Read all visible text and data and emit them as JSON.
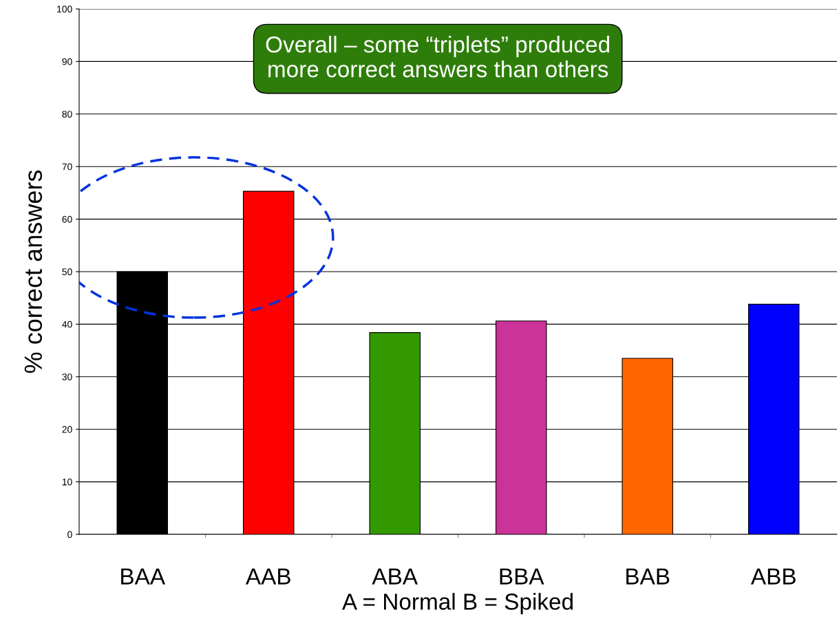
{
  "chart_data": {
    "type": "bar",
    "categories": [
      "BAA",
      "AAB",
      "ABA",
      "BBA",
      "BAB",
      "ABB"
    ],
    "values": [
      50,
      65.3,
      38.4,
      40.6,
      33.5,
      43.8
    ],
    "colors": [
      "#000000",
      "#ff0000",
      "#339900",
      "#cc3399",
      "#ff6600",
      "#0000ff"
    ],
    "ylabel": "% correct answers",
    "xlabel": "A = Normal B = Spiked",
    "annotations": [
      "Overall – some “triplets” produced\nmore correct answers than others"
    ],
    "ylim": [
      0,
      100
    ],
    "yticks": [
      0,
      10,
      20,
      30,
      40,
      50,
      60,
      70,
      80,
      90,
      100
    ],
    "grid": "y",
    "legend": false
  }
}
